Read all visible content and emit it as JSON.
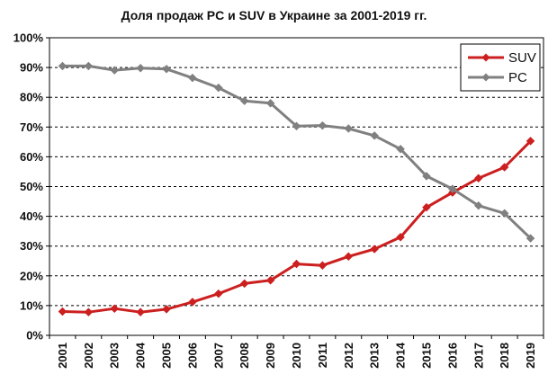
{
  "chart_data": {
    "type": "line",
    "title": "Доля продаж PC и SUV в Украине за 2001-2019 гг.",
    "xlabel": "",
    "ylabel": "",
    "categories": [
      "2001",
      "2002",
      "2003",
      "2004",
      "2005",
      "2006",
      "2007",
      "2008",
      "2009",
      "2010",
      "2011",
      "2012",
      "2013",
      "2014",
      "2015",
      "2016",
      "2017",
      "2018",
      "2019"
    ],
    "y_tick_labels": [
      "0%",
      "10%",
      "20%",
      "30%",
      "40%",
      "50%",
      "60%",
      "70%",
      "80%",
      "90%",
      "100%"
    ],
    "ylim": [
      0,
      100
    ],
    "grid": "horizontal dashed",
    "legend_position": "top-right",
    "series": [
      {
        "name": "SUV",
        "color": "#cc1f1f",
        "values": [
          8,
          7.8,
          9,
          7.8,
          8.8,
          11.2,
          14,
          17.4,
          18.5,
          24,
          23.5,
          26.5,
          29,
          33,
          43,
          48,
          52.8,
          56.5,
          65.3
        ]
      },
      {
        "name": "PC",
        "color": "#808080",
        "values": [
          90.5,
          90.5,
          89.1,
          89.8,
          89.5,
          86.5,
          83.2,
          78.8,
          78,
          70.3,
          70.5,
          69.5,
          67.1,
          62.6,
          53.5,
          49.2,
          43.6,
          41,
          32.6
        ]
      }
    ]
  }
}
